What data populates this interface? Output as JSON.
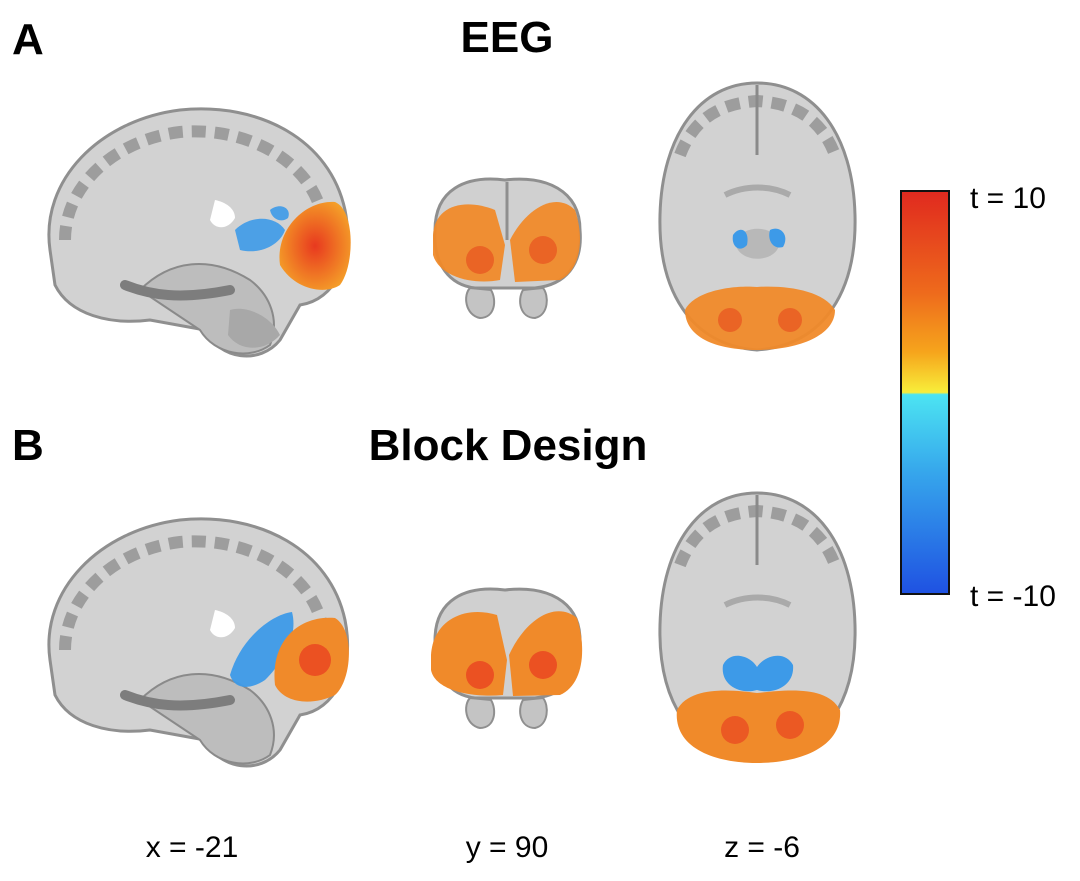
{
  "panels": [
    {
      "letter": "A",
      "title": "EEG"
    },
    {
      "letter": "B",
      "title": "Block Design"
    }
  ],
  "coordinates": {
    "sagittal": "x = -21",
    "coronal": "y = 90",
    "axial": "z = -6"
  },
  "colorbar": {
    "max_label": "t = 10",
    "min_label": "t = -10",
    "colors": {
      "high": "#e02a1f",
      "mid_high": "#f6a51c",
      "threshold_pos": "#f8ee3a",
      "threshold_neg": "#4ce4f2",
      "low": "#1f52e2"
    }
  },
  "colors": {
    "activation": "#f08a2a",
    "deactivation": "#3d9ae8",
    "brain": "#cfcfcf"
  }
}
